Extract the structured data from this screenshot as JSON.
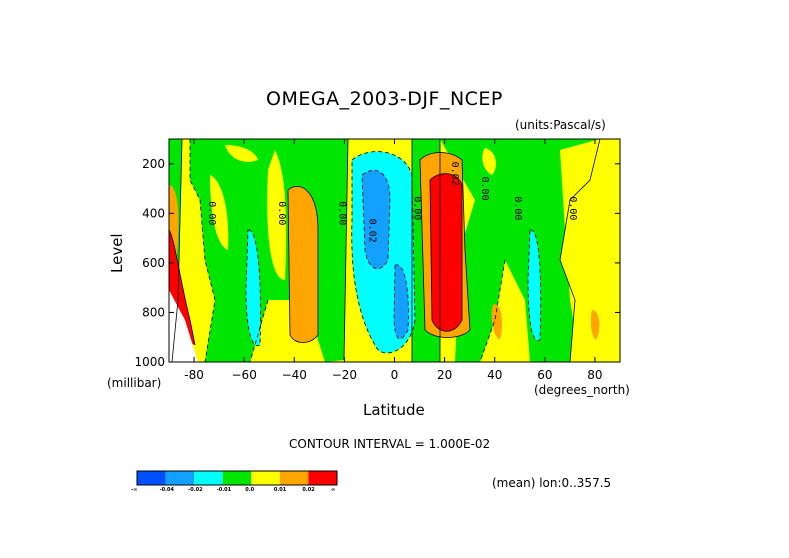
{
  "chart_data": {
    "type": "heatmap",
    "title": "OMEGA_2003-DJF_NCEP",
    "units": "(units:Pascal/s)",
    "xlabel": "Latitude",
    "ylabel": "Level",
    "x_unit": "(degrees_north)",
    "y_unit": "(millibar)",
    "xlim": [
      -90,
      90
    ],
    "ylim": [
      1000,
      100
    ],
    "x_ticks": [
      -80,
      -60,
      -40,
      -20,
      0,
      20,
      40,
      60,
      80
    ],
    "x_tick_labels": [
      "-80",
      "−60",
      "−40",
      "−20",
      "0",
      "20",
      "40",
      "60",
      "80"
    ],
    "y_ticks": [
      200,
      400,
      600,
      800,
      1000
    ],
    "y_tick_labels": [
      "200",
      "400",
      "600",
      "800",
      "1000"
    ],
    "contour_interval_text": "CONTOUR INTERVAL = 1.000E-02",
    "mean_text": "(mean) lon:0..357.5",
    "contour_labels": [
      {
        "lat": -74,
        "lev": 400,
        "text": "0.00"
      },
      {
        "lat": -46,
        "lev": 400,
        "text": "0.00"
      },
      {
        "lat": -22,
        "lev": 400,
        "text": "0.00"
      },
      {
        "lat": -10,
        "lev": 470,
        "text": "0.02"
      },
      {
        "lat": 8,
        "lev": 380,
        "text": "0.00"
      },
      {
        "lat": 23,
        "lev": 240,
        "text": "0.02"
      },
      {
        "lat": 35,
        "lev": 300,
        "text": "0.00"
      },
      {
        "lat": 48,
        "lev": 380,
        "text": "0.00"
      },
      {
        "lat": 70,
        "lev": 380,
        "text": "0.00"
      }
    ],
    "colorbar": {
      "colors": [
        "#0050ff",
        "#14a0ff",
        "#00ffff",
        "#00e600",
        "#ffff00",
        "#ffa500",
        "#ff0000"
      ],
      "labels": [
        "-∞",
        "-0.04",
        "-0.02",
        "-0.01",
        "0.0",
        "0.01",
        "0.02",
        "∞"
      ]
    },
    "colors": {
      "deep_blue": "#0050ff",
      "blue": "#14a0ff",
      "cyan": "#00ffff",
      "green": "#00e600",
      "yellow": "#ffff00",
      "orange": "#ffa500",
      "red": "#ff0000"
    }
  }
}
